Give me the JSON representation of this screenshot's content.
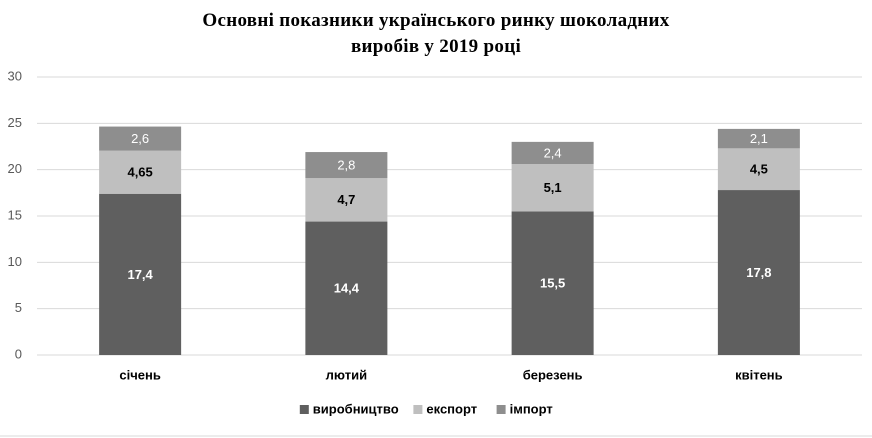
{
  "chart_data": {
    "type": "stacked_bar",
    "title": "Основні показники українського ринку шоколадних виробів у 2019 році",
    "categories": [
      "січень",
      "лютий",
      "березень",
      "квітень"
    ],
    "series": [
      {
        "name": "виробництво",
        "color": "#5f5f5f",
        "values": [
          17.4,
          14.4,
          15.5,
          17.8
        ],
        "value_labels": [
          "17,4",
          "14,4",
          "15,5",
          "17,8"
        ]
      },
      {
        "name": "експорт",
        "color": "#bfbfbf",
        "values": [
          4.65,
          4.7,
          5.1,
          4.5
        ],
        "value_labels": [
          "4,65",
          "4,7",
          "5,1",
          "4,5"
        ]
      },
      {
        "name": "імпорт",
        "color": "#8e8e8e",
        "values": [
          2.6,
          2.8,
          2.4,
          2.1
        ],
        "value_labels": [
          "2,6",
          "2,8",
          "2,4",
          "2,1"
        ]
      }
    ],
    "ylim": [
      0,
      30
    ],
    "yticks": [
      0,
      5,
      10,
      15,
      20,
      25,
      30
    ],
    "grid": true,
    "legend": "bottom"
  }
}
